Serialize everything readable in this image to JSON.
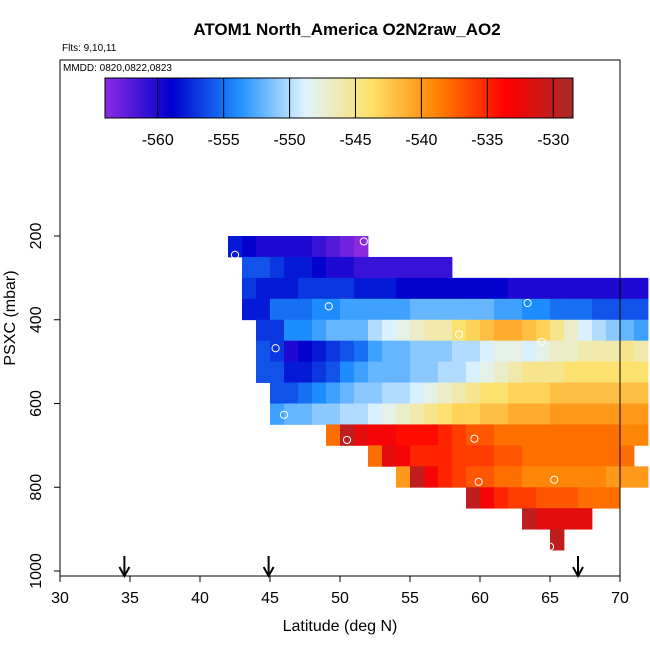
{
  "chart_data": {
    "type": "heatmap",
    "title": "ATOM1 North_America O2N2raw_AO2",
    "subtitle_lines": [
      "Flts: 9,10,11",
      "MMDD: 0820,0822,0823"
    ],
    "xlabel": "Latitude (deg N)",
    "ylabel": "PSXC (mbar)",
    "xlim": [
      30,
      70
    ],
    "ylim": [
      1000,
      0
    ],
    "xticks": [
      30,
      35,
      40,
      45,
      50,
      55,
      60,
      65,
      70
    ],
    "yticks": [
      200,
      400,
      600,
      800,
      1000
    ],
    "colorbar": {
      "range": [
        -564,
        -528.5
      ],
      "ticks": [
        -560,
        -555,
        -550,
        -545,
        -540,
        -535,
        -530
      ],
      "tick_labels": [
        "-560",
        "-555",
        "-550",
        "-545",
        "-540",
        "-535",
        "-530"
      ],
      "colors": [
        "#8a2be2",
        "#0000cd",
        "#1e90ff",
        "#e0f4ff",
        "#ffe066",
        "#ff7f00",
        "#ff0000",
        "#a52a2a"
      ]
    },
    "cell_size": {
      "dx_deg": 1,
      "dp_mbar": 50
    },
    "rows": [
      {
        "p": 225,
        "start": 42,
        "values": [
          -558,
          -559,
          -560,
          -560,
          -560,
          -560,
          -561,
          -562,
          -563,
          -564
        ]
      },
      {
        "p": 275,
        "start": 43,
        "values": [
          -556,
          -556,
          -557,
          -558,
          -558,
          -559,
          -560,
          -560,
          -561,
          -561,
          -561,
          -561,
          -561,
          -561,
          -561
        ]
      },
      {
        "p": 325,
        "start": 43,
        "values": [
          -557,
          -558,
          -558,
          -558,
          -557,
          -557,
          -557,
          -557,
          -558,
          -558,
          -558,
          -559,
          -559,
          -559,
          -559,
          -559,
          -559,
          -559,
          -559,
          -560,
          -560,
          -560,
          -560,
          -560,
          -560,
          -560,
          -560,
          -560,
          -560
        ]
      },
      {
        "p": 375,
        "start": 43,
        "values": [
          -558,
          -558,
          -555,
          -555,
          -555,
          -554,
          -554,
          -553,
          -553,
          -553,
          -553,
          -553,
          -552,
          -552,
          -552,
          -552,
          -552,
          -552,
          -553,
          -553,
          -554,
          -554,
          -555,
          -555,
          -555,
          -556,
          -556,
          -556,
          -556
        ]
      },
      {
        "p": 425,
        "start": 44,
        "values": [
          -557,
          -557,
          -554,
          -554,
          -553,
          -552,
          -552,
          -552,
          -550,
          -549,
          -548,
          -547,
          -546,
          -546,
          -544,
          -543,
          -542,
          -541,
          -541,
          -542,
          -543,
          -545,
          -547,
          -549,
          -550,
          -551,
          -552,
          -553
        ]
      },
      {
        "p": 475,
        "start": 44,
        "values": [
          -556,
          -557,
          -560,
          -559,
          -558,
          -557,
          -556,
          -555,
          -553,
          -552,
          -552,
          -551,
          -551,
          -551,
          -550,
          -550,
          -549,
          -548,
          -548,
          -549,
          -548,
          -547,
          -547,
          -546,
          -546,
          -546,
          -545,
          -546
        ]
      },
      {
        "p": 525,
        "start": 44,
        "values": [
          -556,
          -556,
          -558,
          -558,
          -557,
          -556,
          -554,
          -553,
          -552,
          -552,
          -552,
          -551,
          -551,
          -550,
          -550,
          -549,
          -548,
          -547,
          -546,
          -545,
          -545,
          -545,
          -544,
          -544,
          -544,
          -544,
          -544,
          -544
        ]
      },
      {
        "p": 575,
        "start": 45,
        "values": [
          -556,
          -556,
          -555,
          -554,
          -553,
          -552,
          -551,
          -551,
          -550,
          -550,
          -549,
          -548,
          -547,
          -546,
          -545,
          -544,
          -544,
          -543,
          -543,
          -543,
          -542,
          -542,
          -542,
          -542,
          -542,
          -542,
          -542
        ]
      },
      {
        "p": 625,
        "start": 45,
        "values": [
          -553,
          -552,
          -552,
          -551,
          -551,
          -550,
          -550,
          -549,
          -548,
          -547,
          -546,
          -545,
          -544,
          -543,
          -543,
          -542,
          -542,
          -541,
          -541,
          -541,
          -540,
          -540,
          -540,
          -540,
          -540,
          -540,
          -540
        ]
      },
      {
        "p": 675,
        "start": 49,
        "values": [
          -538,
          -530,
          -532,
          -533,
          -533,
          -534,
          -534,
          -534,
          -535,
          -536,
          -537,
          -537,
          -538,
          -538,
          -538,
          -538,
          -538,
          -538,
          -538,
          -538,
          -538,
          -539,
          -539
        ]
      },
      {
        "p": 725,
        "start": 52,
        "values": [
          -538,
          -532,
          -533,
          -535,
          -535,
          -535,
          -536,
          -536,
          -536,
          -537,
          -537,
          -538,
          -538,
          -538,
          -538,
          -538,
          -538,
          -538,
          -538
        ]
      },
      {
        "p": 775,
        "start": 54,
        "values": [
          -540,
          -530,
          -533,
          -535,
          -536,
          -537,
          -537,
          -538,
          -538,
          -539,
          -539,
          -539,
          -539,
          -539,
          -539,
          -540,
          -540,
          -540
        ]
      },
      {
        "p": 825,
        "start": 59,
        "values": [
          -530,
          -533,
          -535,
          -536,
          -536,
          -537,
          -537,
          -537,
          -538,
          -538,
          -538
        ]
      },
      {
        "p": 875,
        "start": 63,
        "values": [
          -530,
          -532,
          -532,
          -532,
          -532
        ]
      },
      {
        "p": 925,
        "start": 65,
        "values": [
          -530
        ]
      }
    ],
    "markers": [
      {
        "lat": 42.5,
        "p": 245
      },
      {
        "lat": 51.7,
        "p": 213
      },
      {
        "lat": 49.2,
        "p": 368
      },
      {
        "lat": 63.4,
        "p": 360
      },
      {
        "lat": 45.4,
        "p": 468
      },
      {
        "lat": 58.5,
        "p": 435
      },
      {
        "lat": 64.4,
        "p": 453
      },
      {
        "lat": 46.0,
        "p": 627
      },
      {
        "lat": 50.5,
        "p": 687
      },
      {
        "lat": 59.6,
        "p": 684
      },
      {
        "lat": 59.9,
        "p": 787
      },
      {
        "lat": 65.3,
        "p": 782
      },
      {
        "lat": 65.0,
        "p": 942
      }
    ],
    "arrows": [
      {
        "lat": 34.6
      },
      {
        "lat": 44.9
      },
      {
        "lat": 67.0
      }
    ]
  }
}
